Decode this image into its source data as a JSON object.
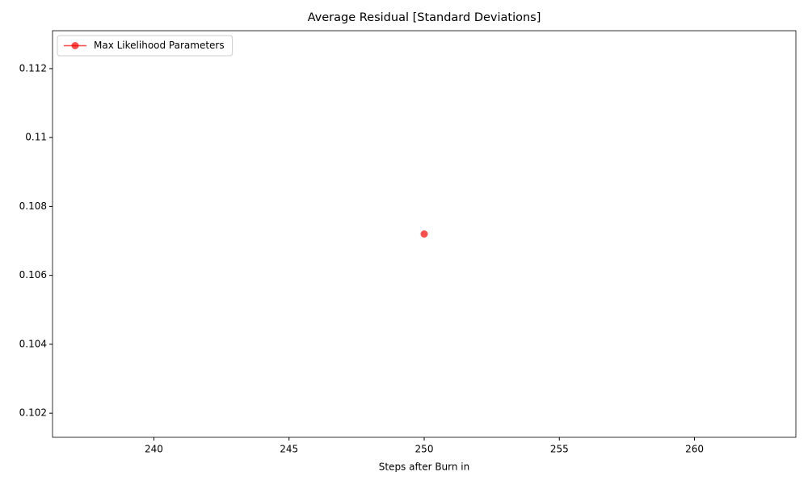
{
  "chart_data": {
    "type": "line",
    "title": "Average Residual [Standard Deviations]",
    "xlabel": "Steps after Burn in",
    "x": [
      250
    ],
    "series": [
      {
        "name": "Max Likelihood Parameters",
        "color": "#ff0000",
        "values": [
          0.1072
        ]
      }
    ],
    "xlim": [
      236.25,
      263.75
    ],
    "xticks": [
      240,
      245,
      250,
      255,
      260
    ],
    "ylim": [
      0.1013,
      0.1131
    ],
    "yticks": [
      0.102,
      0.104,
      0.106,
      0.108,
      0.11,
      0.112
    ],
    "legend": "upper left",
    "grid": false
  }
}
